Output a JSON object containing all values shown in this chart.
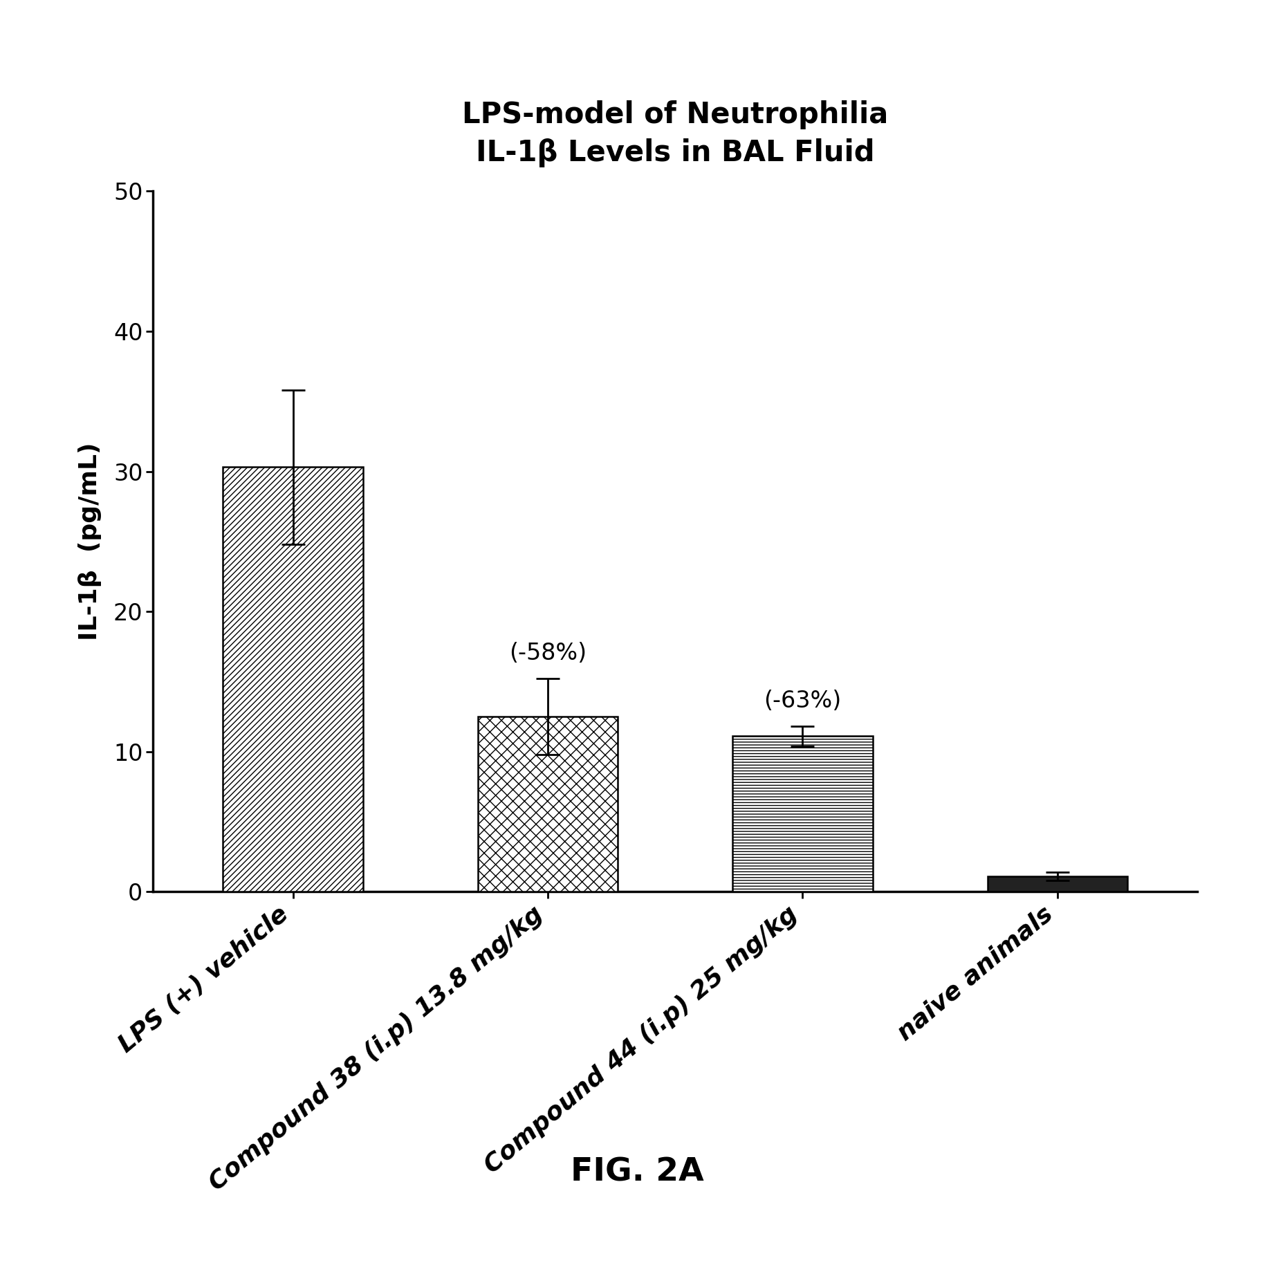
{
  "title_line1": "LPS-model of Neutrophilia",
  "title_line2": "IL-1β Levels in BAL Fluid",
  "xlabel": "",
  "ylabel": "IL-1β  (pg/mL)",
  "categories": [
    "LPS (+) vehicle",
    "Compound 38 (i.p) 13.8 mg/kg",
    "Compound 44 (i.p) 25 mg/kg",
    "naive animals"
  ],
  "values": [
    30.3,
    12.5,
    11.1,
    1.1
  ],
  "errors": [
    5.5,
    2.7,
    0.7,
    0.3
  ],
  "annotations": [
    "",
    "(-58%)",
    "(-63%)",
    ""
  ],
  "ylim": [
    0,
    50
  ],
  "yticks": [
    0,
    10,
    20,
    30,
    40,
    50
  ],
  "background_color": "#ffffff",
  "bar_edge_color": "#000000",
  "title_fontsize": 30,
  "label_fontsize": 26,
  "tick_fontsize": 24,
  "annotation_fontsize": 24,
  "fig_caption": "FIG. 2A",
  "fig_caption_fontsize": 34,
  "hatch_patterns": [
    "////",
    "xx",
    "----",
    ""
  ],
  "fill_colors": [
    "white",
    "white",
    "white",
    "#222222"
  ],
  "bar_width": 0.55
}
